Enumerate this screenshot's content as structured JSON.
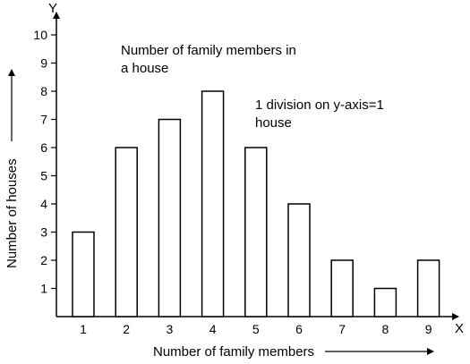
{
  "chart_data": {
    "type": "bar",
    "categories": [
      "1",
      "2",
      "3",
      "4",
      "5",
      "6",
      "7",
      "8",
      "9"
    ],
    "values": [
      3,
      6,
      7,
      8,
      6,
      4,
      2,
      1,
      2
    ],
    "xlabel": "Number of family members",
    "ylabel": "Number of houses",
    "y_axis_letter": "Y",
    "x_axis_letter": "X",
    "ylim": [
      0,
      10
    ],
    "yticks": [
      "1",
      "2",
      "3",
      "4",
      "5",
      "6",
      "7",
      "8",
      "9",
      "10"
    ],
    "annotations": {
      "title_line1": "Number of family members in",
      "title_line2": "a house",
      "scale_line1": "1 division on y-axis=1",
      "scale_line2": "house"
    },
    "grid": false,
    "bar_fill": "#ffffff",
    "bar_stroke": "#000000"
  }
}
